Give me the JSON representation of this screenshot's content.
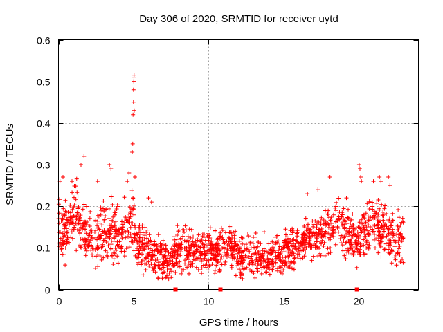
{
  "chart_data": {
    "type": "scatter",
    "title": "Day 306 of 2020, SRMTID for receiver uytd",
    "xlabel": "GPS time / hours",
    "ylabel": "SRMTID / TECUs",
    "xlim": [
      0,
      24
    ],
    "ylim": [
      0,
      0.6
    ],
    "x_ticks": [
      0,
      5,
      10,
      15,
      20
    ],
    "x_tick_labels": [
      "0",
      "5",
      "10",
      "15",
      "20"
    ],
    "y_ticks": [
      0,
      0.1,
      0.2,
      0.3,
      0.4,
      0.5,
      0.6
    ],
    "y_tick_labels": [
      "0",
      "0.1",
      "0.2",
      "0.3",
      "0.4",
      "0.5",
      "0.6"
    ],
    "grid": true,
    "marker_color": "#ff0000",
    "baseline_markers_x": [
      7.8,
      10.8,
      19.9
    ],
    "series": [
      {
        "name": "SRMTID",
        "profile": {
          "hours": [
            0,
            0.3,
            0.8,
            1.2,
            1.6,
            2.0,
            2.5,
            3.0,
            3.5,
            4.0,
            4.5,
            4.9,
            5.2,
            5.6,
            6.0,
            6.5,
            7.0,
            7.5,
            8.0,
            8.5,
            9.0,
            9.5,
            10.0,
            10.5,
            11.0,
            11.5,
            12.0,
            12.5,
            13.0,
            13.5,
            14.0,
            14.5,
            15.0,
            15.5,
            16.0,
            16.5,
            17.0,
            17.5,
            18.0,
            18.5,
            19.0,
            19.5,
            19.9,
            20.3,
            20.7,
            21.0,
            21.5,
            22.0,
            22.5,
            23.0
          ],
          "median": [
            0.15,
            0.14,
            0.15,
            0.18,
            0.15,
            0.13,
            0.12,
            0.13,
            0.14,
            0.13,
            0.15,
            0.17,
            0.12,
            0.1,
            0.09,
            0.08,
            0.07,
            0.07,
            0.09,
            0.1,
            0.09,
            0.09,
            0.1,
            0.09,
            0.09,
            0.1,
            0.08,
            0.08,
            0.08,
            0.08,
            0.07,
            0.09,
            0.09,
            0.1,
            0.11,
            0.12,
            0.12,
            0.13,
            0.14,
            0.16,
            0.15,
            0.13,
            0.11,
            0.14,
            0.15,
            0.18,
            0.14,
            0.13,
            0.12,
            0.13
          ],
          "spread": [
            0.05,
            0.06,
            0.05,
            0.06,
            0.05,
            0.05,
            0.05,
            0.06,
            0.06,
            0.05,
            0.05,
            0.06,
            0.05,
            0.05,
            0.04,
            0.04,
            0.04,
            0.04,
            0.05,
            0.05,
            0.04,
            0.04,
            0.04,
            0.04,
            0.04,
            0.04,
            0.04,
            0.04,
            0.04,
            0.04,
            0.04,
            0.04,
            0.04,
            0.04,
            0.04,
            0.04,
            0.04,
            0.04,
            0.05,
            0.05,
            0.05,
            0.05,
            0.04,
            0.05,
            0.05,
            0.05,
            0.05,
            0.05,
            0.05,
            0.05
          ]
        },
        "outliers": [
          [
            0.1,
            0.26
          ],
          [
            0.3,
            0.27
          ],
          [
            0.9,
            0.26
          ],
          [
            1.5,
            0.3
          ],
          [
            1.7,
            0.32
          ],
          [
            2.6,
            0.26
          ],
          [
            3.4,
            0.3
          ],
          [
            3.5,
            0.29
          ],
          [
            4.6,
            0.26
          ],
          [
            4.7,
            0.28
          ],
          [
            4.92,
            0.33
          ],
          [
            4.95,
            0.35
          ],
          [
            4.97,
            0.42
          ],
          [
            5.0,
            0.45
          ],
          [
            5.0,
            0.48
          ],
          [
            5.02,
            0.5
          ],
          [
            5.03,
            0.51
          ],
          [
            5.04,
            0.515
          ],
          [
            5.05,
            0.43
          ],
          [
            5.1,
            0.27
          ],
          [
            6.0,
            0.22
          ],
          [
            6.2,
            0.21
          ],
          [
            18.1,
            0.27
          ],
          [
            17.3,
            0.24
          ],
          [
            19.2,
            0.22
          ],
          [
            20.05,
            0.3
          ],
          [
            20.1,
            0.29
          ],
          [
            20.15,
            0.27
          ],
          [
            20.2,
            0.26
          ],
          [
            21.0,
            0.26
          ],
          [
            21.4,
            0.27
          ],
          [
            21.5,
            0.26
          ],
          [
            22.0,
            0.27
          ],
          [
            22.1,
            0.25
          ],
          [
            16.6,
            0.23
          ]
        ],
        "n_points": 1900
      }
    ]
  }
}
